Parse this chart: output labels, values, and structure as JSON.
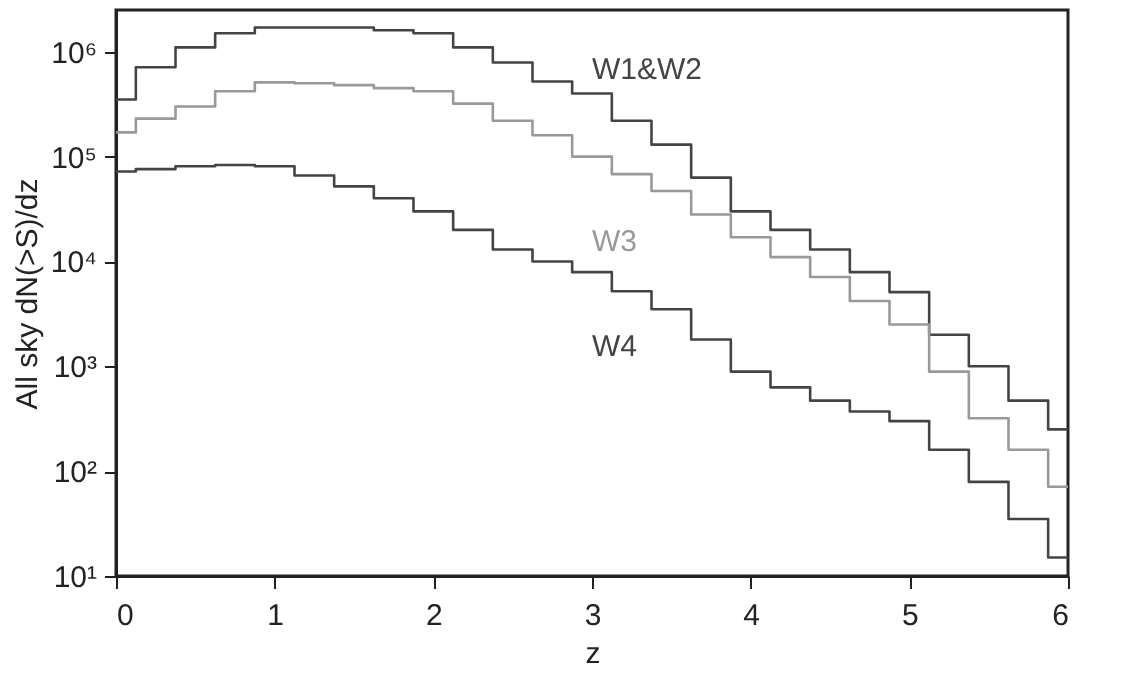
{
  "chart_data": {
    "type": "step",
    "xlabel": "z",
    "ylabel": "All sky dN(>S)/dz",
    "x": [
      0,
      0.25,
      0.5,
      0.75,
      1,
      1.25,
      1.5,
      1.75,
      2,
      2.25,
      2.5,
      2.75,
      3,
      3.25,
      3.5,
      3.75,
      4,
      4.25,
      4.5,
      4.75,
      5,
      5.25,
      5.5,
      5.75,
      6
    ],
    "series": [
      {
        "name": "W1&W2",
        "color": "#444444",
        "values": [
          350000,
          710000,
          1100000,
          1500000,
          1700000,
          1700000,
          1700000,
          1600000,
          1500000,
          1100000,
          790000,
          520000,
          400000,
          220000,
          130000,
          63000,
          30000,
          20000,
          13000,
          7900,
          5100,
          2000,
          1000,
          470,
          250
        ]
      },
      {
        "name": "W3",
        "color": "#999999",
        "values": [
          170000,
          230000,
          300000,
          420000,
          510000,
          500000,
          480000,
          450000,
          420000,
          320000,
          220000,
          160000,
          100000,
          68000,
          47000,
          28000,
          17000,
          11000,
          7100,
          4200,
          2500,
          890,
          320,
          160,
          71
        ]
      },
      {
        "name": "W4",
        "color": "#444444",
        "values": [
          72000,
          76000,
          81000,
          83000,
          81000,
          66000,
          52000,
          40000,
          30000,
          20000,
          13000,
          10000,
          7900,
          5200,
          3500,
          1800,
          890,
          630,
          470,
          370,
          300,
          160,
          79,
          35,
          15
        ]
      }
    ],
    "log": "y",
    "xlim": [
      0,
      6
    ],
    "xticks": [
      0,
      1,
      2,
      3,
      4,
      5,
      6
    ],
    "ylim": [
      10,
      2500000
    ],
    "yticks": [
      {
        "value": 10,
        "label": "10¹"
      },
      {
        "value": 100,
        "label": "10²"
      },
      {
        "value": 1000,
        "label": "10³"
      },
      {
        "value": 10000,
        "label": "10⁴"
      },
      {
        "value": 100000,
        "label": "10⁵"
      },
      {
        "value": 1000000,
        "label": "10⁶"
      }
    ],
    "grid": false
  }
}
